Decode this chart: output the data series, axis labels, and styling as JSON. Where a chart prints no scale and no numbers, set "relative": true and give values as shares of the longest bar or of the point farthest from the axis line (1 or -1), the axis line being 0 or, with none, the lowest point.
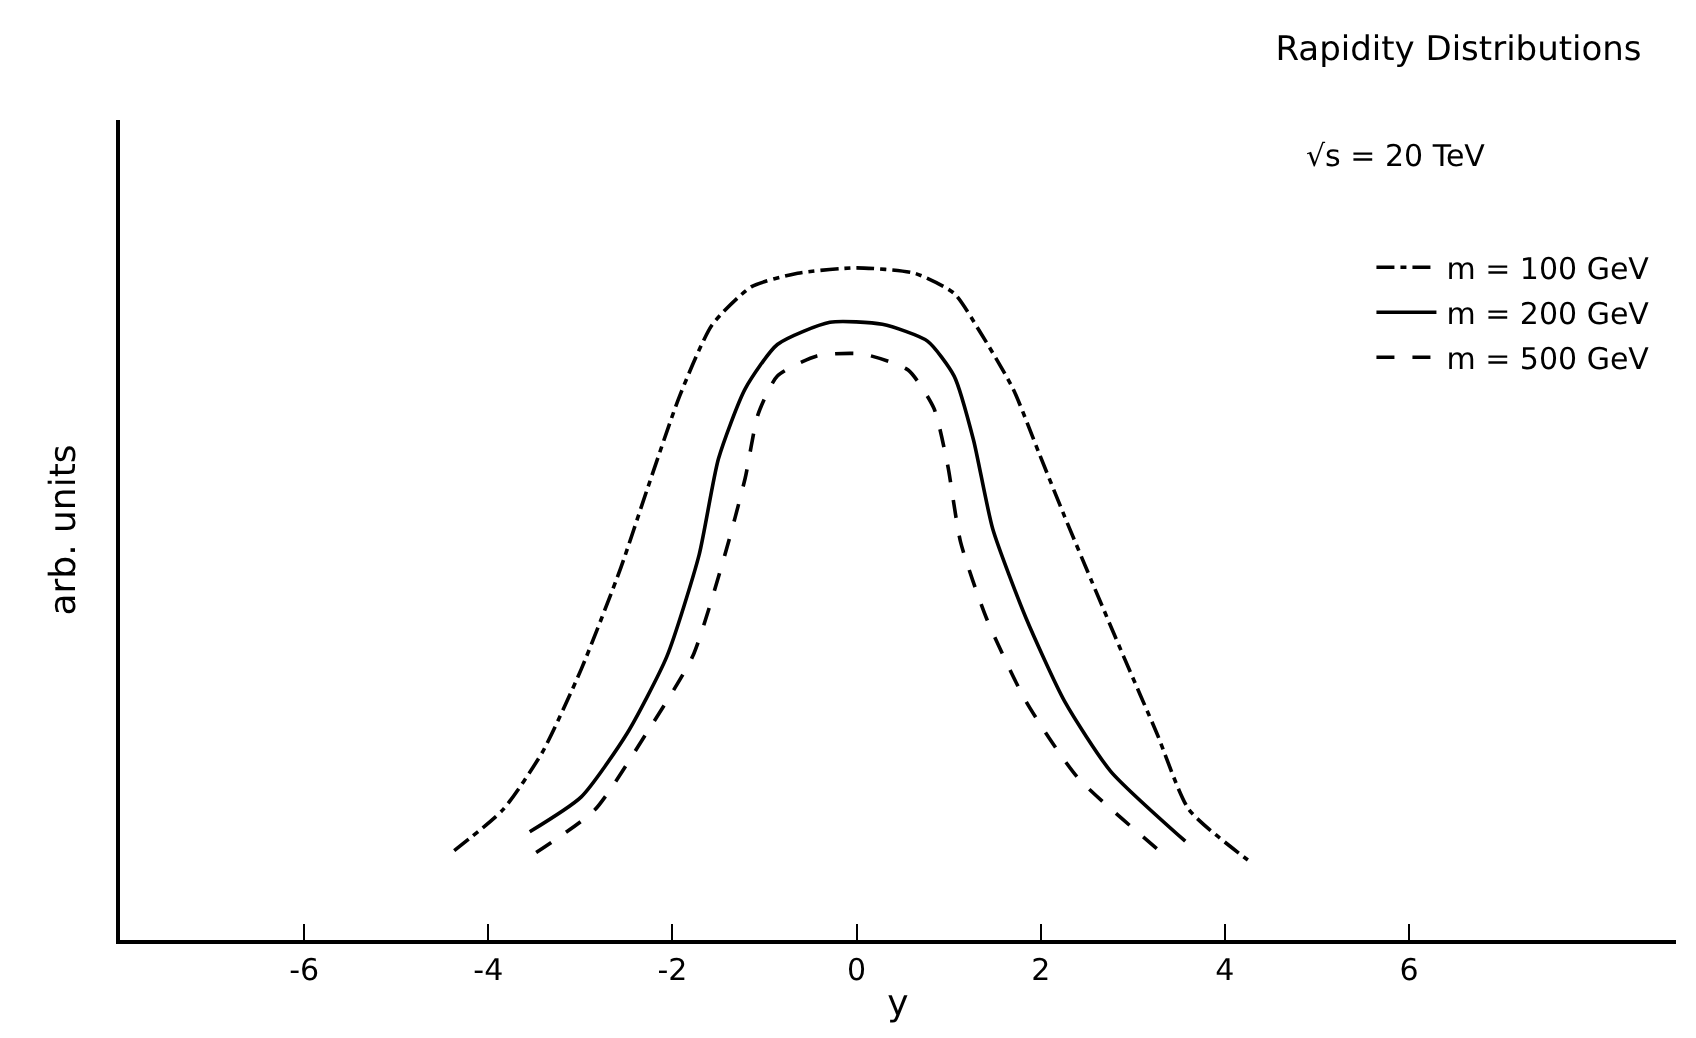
{
  "chart_data": {
    "type": "line",
    "title": "Rapidity Distributions",
    "subtitle": "√s = 20 TeV",
    "xlabel": "y",
    "ylabel": "arb. units",
    "relative": true,
    "xlim": [
      -8,
      8.9
    ],
    "xticks": [
      -6,
      -4,
      -2,
      0,
      2,
      4,
      6
    ],
    "legend": "top right",
    "marker": "none",
    "series": [
      {
        "name": "m = 100 GeV",
        "color": "#000000",
        "line_style": "dashdot",
        "x": [
          -4.37,
          -3.84,
          -3.41,
          -2.99,
          -2.56,
          -2.28,
          -1.92,
          -1.57,
          -1.14,
          -0.64,
          0,
          0.63,
          1.06,
          1.34,
          1.7,
          1.98,
          2.26,
          2.55,
          2.9,
          3.26,
          3.61,
          4.25
        ],
        "values": [
          0.133,
          0.194,
          0.28,
          0.403,
          0.554,
          0.668,
          0.81,
          0.915,
          0.972,
          0.992,
          1,
          0.992,
          0.962,
          0.905,
          0.82,
          0.725,
          0.63,
          0.535,
          0.422,
          0.308,
          0.194,
          0.119
        ]
      },
      {
        "name": "m = 200 GeV",
        "color": "#000000",
        "line_style": "solid",
        "x": [
          -3.55,
          -2.99,
          -2.49,
          -2.06,
          -1.71,
          -1.5,
          -1.21,
          -0.86,
          -0.29,
          0.28,
          0.77,
          1.06,
          1.27,
          1.48,
          1.84,
          2.26,
          2.76,
          3.57
        ],
        "values": [
          0.161,
          0.213,
          0.308,
          0.422,
          0.573,
          0.716,
          0.82,
          0.886,
          0.919,
          0.916,
          0.891,
          0.839,
          0.744,
          0.611,
          0.479,
          0.355,
          0.251,
          0.147
        ]
      },
      {
        "name": "m = 500 GeV",
        "color": "#000000",
        "line_style": "dashed",
        "x": [
          -3.48,
          -2.84,
          -2.28,
          -1.78,
          -1.43,
          -1.21,
          -1.07,
          -0.86,
          -0.43,
          0.06,
          0.56,
          0.84,
          0.99,
          1.13,
          1.41,
          1.84,
          2.4,
          3.33
        ],
        "values": [
          0.13,
          0.194,
          0.308,
          0.422,
          0.573,
          0.687,
          0.782,
          0.839,
          0.869,
          0.872,
          0.848,
          0.791,
          0.706,
          0.592,
          0.479,
          0.355,
          0.242,
          0.128
        ]
      }
    ]
  }
}
